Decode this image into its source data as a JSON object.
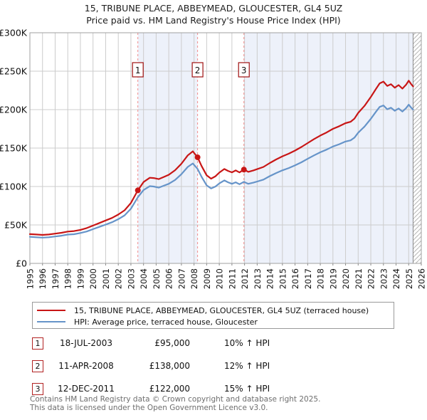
{
  "title": "15, TRIBUNE PLACE, ABBEYMEAD, GLOUCESTER, GL4 5UZ",
  "subtitle": "Price paid vs. HM Land Registry's House Price Index (HPI)",
  "legend": {
    "property": "15, TRIBUNE PLACE, ABBEYMEAD, GLOUCESTER, GL4 5UZ (terraced house)",
    "hpi": "HPI: Average price, terraced house, Gloucester"
  },
  "sales": [
    {
      "num": "1",
      "date": "18-JUL-2003",
      "price": "£95,000",
      "hpi": "10% ↑ HPI"
    },
    {
      "num": "2",
      "date": "11-APR-2008",
      "price": "£138,000",
      "hpi": "12% ↑ HPI"
    },
    {
      "num": "3",
      "date": "12-DEC-2011",
      "price": "£122,000",
      "hpi": "15% ↑ HPI"
    }
  ],
  "footer": {
    "line1": "Contains HM Land Registry data © Crown copyright and database right 2025.",
    "line2": "This data is licensed under the Open Government Licence v3.0."
  },
  "chart_data": {
    "type": "line",
    "title": "15, TRIBUNE PLACE, ABBEYMEAD, GLOUCESTER, GL4 5UZ",
    "subtitle": "Price paid vs. HM Land Registry's House Price Index (HPI)",
    "units": "GBP thousands",
    "x_range": [
      1995,
      2026
    ],
    "y_range_gbp_thousands": [
      0,
      300
    ],
    "y_tick_values": [
      0,
      50,
      100,
      150,
      200,
      250,
      300
    ],
    "y_tick_labels": [
      "£0",
      "£50K",
      "£100K",
      "£150K",
      "£200K",
      "£250K",
      "£300K"
    ],
    "x_tick_years": [
      1995,
      1996,
      1997,
      1998,
      1999,
      2000,
      2001,
      2002,
      2003,
      2004,
      2005,
      2006,
      2007,
      2008,
      2009,
      2010,
      2011,
      2012,
      2013,
      2014,
      2015,
      2016,
      2017,
      2018,
      2019,
      2020,
      2021,
      2022,
      2023,
      2024,
      2025,
      2026
    ],
    "legend_position": "bottom",
    "grid": true,
    "colors": {
      "property": "#c81616",
      "hpi": "#6694c9",
      "dash": "#f08c8c",
      "shade": "#edf1fa",
      "grid": "#cccccc",
      "border": "#a0a0a0",
      "marker_box": "#a01212",
      "hatch": "#b5b5b5",
      "hatch_edge": "#8a8a8a"
    },
    "shaded_periods": [
      [
        2003.55,
        2008.28
      ],
      [
        2011.95,
        2025.35
      ]
    ],
    "future_hatch_from": 2025.35,
    "sale_markers": [
      {
        "n": "1",
        "year": 2003.55,
        "value": 95,
        "date": "18-JUL-2003",
        "pct_vs_hpi": "10% ↑"
      },
      {
        "n": "2",
        "year": 2008.28,
        "value": 138,
        "date": "11-APR-2008",
        "pct_vs_hpi": "12% ↑"
      },
      {
        "n": "3",
        "year": 2011.95,
        "value": 122,
        "date": "12-DEC-2011",
        "pct_vs_hpi": "15% ↑"
      }
    ],
    "series": [
      {
        "name": "15, TRIBUNE PLACE, ABBEYMEAD, GLOUCESTER, GL4 5UZ (terraced house)",
        "color": "#c81616",
        "points": [
          [
            1995.0,
            38.1
          ],
          [
            1995.5,
            37.6
          ],
          [
            1996.0,
            37.0
          ],
          [
            1996.5,
            37.6
          ],
          [
            1997.0,
            38.7
          ],
          [
            1997.5,
            39.8
          ],
          [
            1998.0,
            41.4
          ],
          [
            1998.5,
            42.0
          ],
          [
            1999.0,
            43.6
          ],
          [
            1999.5,
            45.9
          ],
          [
            2000.0,
            49.2
          ],
          [
            2000.5,
            52.5
          ],
          [
            2001.0,
            55.8
          ],
          [
            2001.5,
            59.1
          ],
          [
            2002.0,
            63.5
          ],
          [
            2002.5,
            69.1
          ],
          [
            2003.0,
            78.5
          ],
          [
            2003.55,
            95.0
          ],
          [
            2004.0,
            105.8
          ],
          [
            2004.5,
            111.4
          ],
          [
            2004.8,
            111.0
          ],
          [
            2005.2,
            109.6
          ],
          [
            2005.6,
            112.4
          ],
          [
            2006.0,
            115.3
          ],
          [
            2006.5,
            121.2
          ],
          [
            2007.0,
            129.6
          ],
          [
            2007.5,
            140.5
          ],
          [
            2007.9,
            145.7
          ],
          [
            2008.28,
            138.0
          ],
          [
            2008.6,
            126.6
          ],
          [
            2009.0,
            114.5
          ],
          [
            2009.35,
            110.2
          ],
          [
            2009.7,
            113.3
          ],
          [
            2010.0,
            118.1
          ],
          [
            2010.4,
            122.8
          ],
          [
            2010.7,
            120.3
          ],
          [
            2011.0,
            118.4
          ],
          [
            2011.3,
            120.9
          ],
          [
            2011.6,
            118.3
          ],
          [
            2011.95,
            122.0
          ],
          [
            2012.3,
            119.1
          ],
          [
            2012.7,
            120.9
          ],
          [
            2013.0,
            122.6
          ],
          [
            2013.5,
            125.5
          ],
          [
            2014.0,
            130.6
          ],
          [
            2014.5,
            135.2
          ],
          [
            2015.0,
            139.3
          ],
          [
            2015.5,
            142.7
          ],
          [
            2016.0,
            146.8
          ],
          [
            2016.5,
            151.4
          ],
          [
            2017.0,
            156.5
          ],
          [
            2017.5,
            161.7
          ],
          [
            2018.0,
            166.3
          ],
          [
            2018.5,
            170.3
          ],
          [
            2019.0,
            175.0
          ],
          [
            2019.5,
            178.4
          ],
          [
            2020.0,
            182.4
          ],
          [
            2020.4,
            184.2
          ],
          [
            2020.7,
            188.2
          ],
          [
            2021.0,
            195.7
          ],
          [
            2021.5,
            204.9
          ],
          [
            2022.0,
            216.4
          ],
          [
            2022.4,
            226.7
          ],
          [
            2022.7,
            234.2
          ],
          [
            2023.0,
            236.5
          ],
          [
            2023.3,
            230.8
          ],
          [
            2023.6,
            233.1
          ],
          [
            2023.9,
            228.5
          ],
          [
            2024.2,
            231.9
          ],
          [
            2024.5,
            227.3
          ],
          [
            2024.8,
            232.5
          ],
          [
            2025.0,
            237.7
          ],
          [
            2025.2,
            233.1
          ],
          [
            2025.35,
            230.2
          ]
        ]
      },
      {
        "name": "HPI: Average price, terraced house, Gloucester",
        "color": "#6694c9",
        "points": [
          [
            1995.0,
            34.5
          ],
          [
            1995.5,
            34.0
          ],
          [
            1996.0,
            33.5
          ],
          [
            1996.5,
            34.0
          ],
          [
            1997.0,
            35.0
          ],
          [
            1997.5,
            36.0
          ],
          [
            1998.0,
            37.5
          ],
          [
            1998.5,
            38.0
          ],
          [
            1999.0,
            39.5
          ],
          [
            1999.5,
            41.5
          ],
          [
            2000.0,
            44.5
          ],
          [
            2000.5,
            47.5
          ],
          [
            2001.0,
            50.5
          ],
          [
            2001.5,
            53.5
          ],
          [
            2002.0,
            57.5
          ],
          [
            2002.5,
            62.5
          ],
          [
            2003.0,
            71.0
          ],
          [
            2003.55,
            86.0
          ],
          [
            2004.0,
            95.5
          ],
          [
            2004.5,
            100.5
          ],
          [
            2004.8,
            100.0
          ],
          [
            2005.2,
            98.5
          ],
          [
            2005.6,
            101.0
          ],
          [
            2006.0,
            103.5
          ],
          [
            2006.5,
            108.5
          ],
          [
            2007.0,
            116.0
          ],
          [
            2007.5,
            125.5
          ],
          [
            2007.9,
            130.0
          ],
          [
            2008.28,
            123.0
          ],
          [
            2008.6,
            112.5
          ],
          [
            2009.0,
            101.5
          ],
          [
            2009.35,
            97.5
          ],
          [
            2009.7,
            100.0
          ],
          [
            2010.0,
            104.0
          ],
          [
            2010.4,
            108.0
          ],
          [
            2010.7,
            105.5
          ],
          [
            2011.0,
            103.5
          ],
          [
            2011.3,
            105.5
          ],
          [
            2011.6,
            103.0
          ],
          [
            2011.95,
            106.0
          ],
          [
            2012.3,
            103.5
          ],
          [
            2012.7,
            105.0
          ],
          [
            2013.0,
            106.5
          ],
          [
            2013.5,
            109.0
          ],
          [
            2014.0,
            113.5
          ],
          [
            2014.5,
            117.5
          ],
          [
            2015.0,
            121.0
          ],
          [
            2015.5,
            124.0
          ],
          [
            2016.0,
            127.5
          ],
          [
            2016.5,
            131.5
          ],
          [
            2017.0,
            136.0
          ],
          [
            2017.5,
            140.5
          ],
          [
            2018.0,
            144.5
          ],
          [
            2018.5,
            148.0
          ],
          [
            2019.0,
            152.0
          ],
          [
            2019.5,
            155.0
          ],
          [
            2020.0,
            158.5
          ],
          [
            2020.4,
            160.0
          ],
          [
            2020.7,
            163.5
          ],
          [
            2021.0,
            170.0
          ],
          [
            2021.5,
            178.0
          ],
          [
            2022.0,
            188.0
          ],
          [
            2022.4,
            197.0
          ],
          [
            2022.7,
            203.5
          ],
          [
            2023.0,
            205.5
          ],
          [
            2023.3,
            200.5
          ],
          [
            2023.6,
            202.5
          ],
          [
            2023.9,
            198.5
          ],
          [
            2024.2,
            201.5
          ],
          [
            2024.5,
            197.5
          ],
          [
            2024.8,
            202.0
          ],
          [
            2025.0,
            206.5
          ],
          [
            2025.2,
            202.5
          ],
          [
            2025.35,
            200.0
          ]
        ]
      }
    ]
  }
}
